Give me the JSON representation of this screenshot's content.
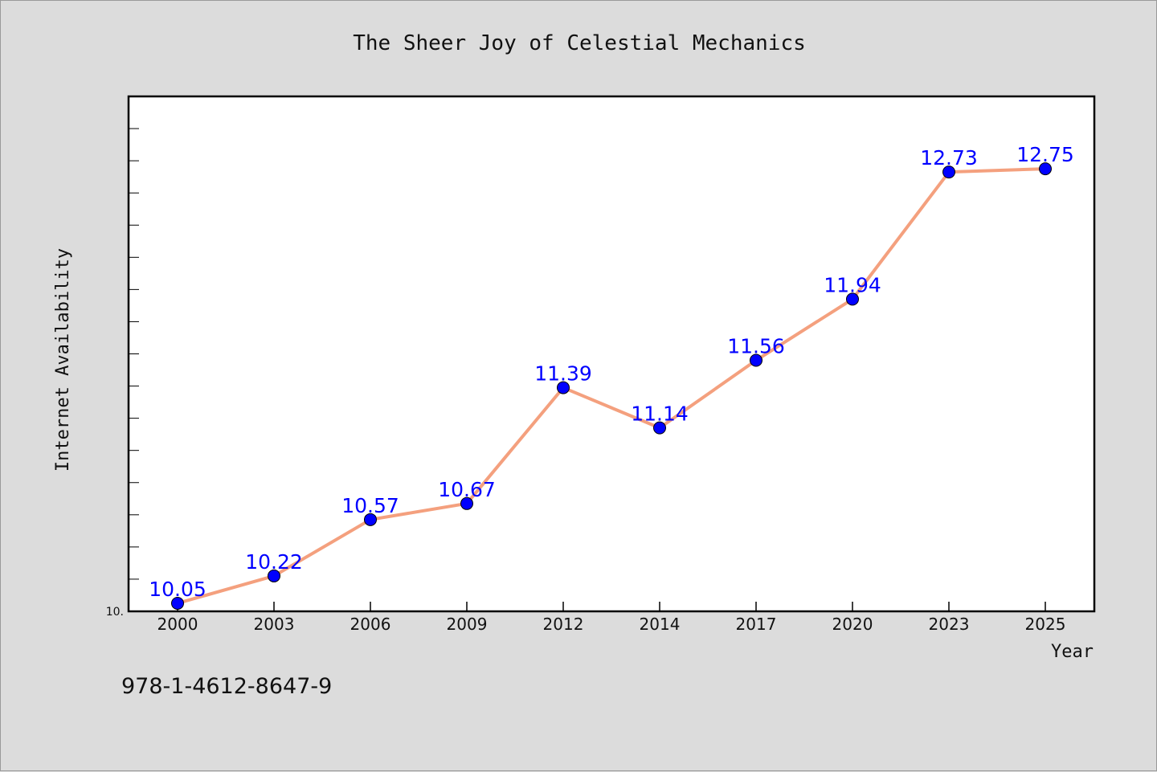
{
  "chart_data": {
    "type": "line",
    "title": "The Sheer Joy of Celestial Mechanics",
    "xlabel": "Year",
    "ylabel": "Internet Availability",
    "categories": [
      "2000",
      "2003",
      "2006",
      "2009",
      "2012",
      "2014",
      "2017",
      "2020",
      "2023",
      "2025"
    ],
    "series": [
      {
        "values": [
          10.05,
          10.22,
          10.57,
          10.67,
          11.39,
          11.14,
          11.56,
          11.94,
          12.73,
          12.75
        ]
      }
    ],
    "data_labels": [
      "10.05",
      "10.22",
      "10.57",
      "10.67",
      "11.39",
      "11.14",
      "11.56",
      "11.94",
      "12.73",
      "12.75"
    ],
    "ylim": [
      10.0,
      13.2
    ],
    "y_tick_label": "10.",
    "line_color": "#f4a07e",
    "marker_color": "#0000ff",
    "data_label_color": "#0000ff",
    "grid": false,
    "legend": "none"
  },
  "footer": {
    "isbn": "978-1-4612-8647-9"
  }
}
